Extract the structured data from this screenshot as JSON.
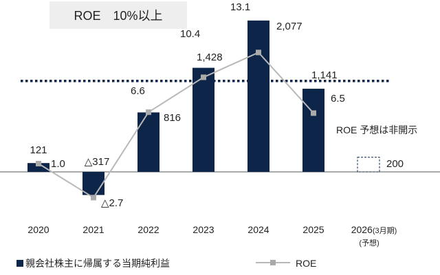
{
  "chart_data": {
    "type": "bar+line",
    "categories": [
      "2020",
      "2021",
      "2022",
      "2023",
      "2024",
      "2025",
      "2026"
    ],
    "category_notes": [
      "",
      "",
      "",
      "",
      "",
      "",
      "(3月期)"
    ],
    "category_sublabel": "(予想)",
    "bar_series": {
      "name": "親会社株主に帰属する当期純利益",
      "values": [
        121,
        -317,
        816,
        1428,
        2077,
        1141,
        200
      ],
      "labels": [
        "121",
        "△317",
        "816",
        "1,428",
        "2,077",
        "1,141",
        "200"
      ],
      "forecast_index": 6,
      "color": "#0c2548",
      "forecast_style": "dashed-outline"
    },
    "line_series": {
      "name": "ROE",
      "values": [
        1.0,
        -2.7,
        6.6,
        10.4,
        13.1,
        6.5,
        null
      ],
      "labels": [
        "1.0",
        "△2.7",
        "6.6",
        "10.4",
        "13.1",
        "6.5",
        ""
      ],
      "color": "#b8b8b8"
    },
    "target_line": {
      "value": 10,
      "label": "ROE　10%以上",
      "color": "#0c2548",
      "style": "dotted"
    },
    "annotation": "ROE 予想は非開示",
    "legend": {
      "placement": "bottom-left",
      "bar_label": "親会社株主に帰属する当期純利益",
      "line_label": "ROE"
    },
    "bar_ylim": [
      -500,
      2300
    ],
    "line_ylim": [
      -3.5,
      13.55
    ]
  }
}
